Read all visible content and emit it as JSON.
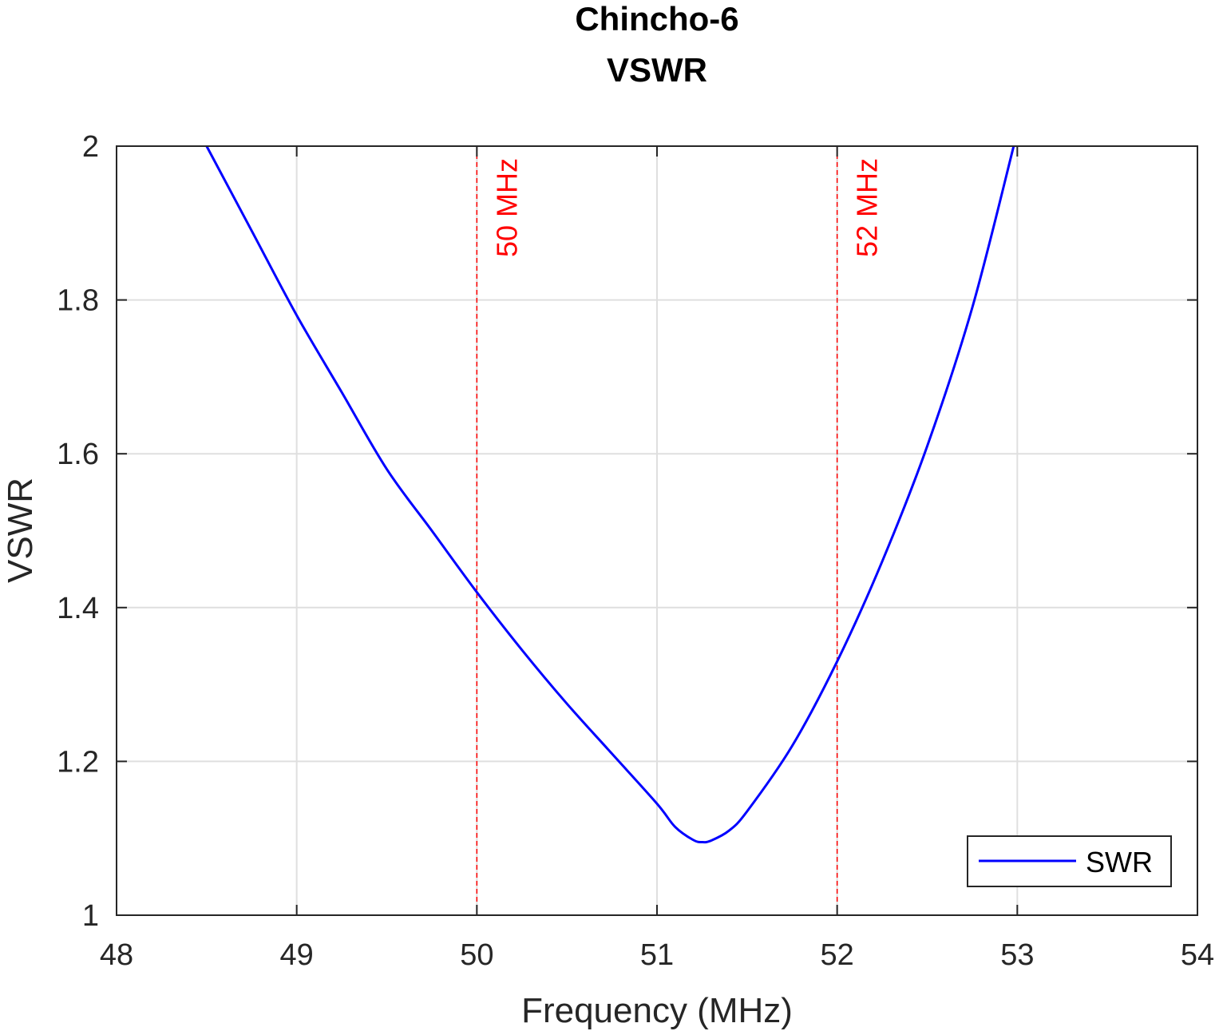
{
  "chart_data": {
    "type": "line",
    "title": [
      "Chincho-6",
      "VSWR"
    ],
    "xlabel": "Frequency (MHz)",
    "ylabel": "VSWR",
    "xlim": [
      48,
      54
    ],
    "ylim": [
      1,
      2
    ],
    "xticks": [
      "48",
      "49",
      "50",
      "51",
      "52",
      "53",
      "54"
    ],
    "yticks": [
      "1",
      "1.2",
      "1.4",
      "1.6",
      "1.8",
      "2"
    ],
    "grid": true,
    "legend_position": "bottom-right",
    "series": [
      {
        "name": "SWR",
        "color": "#0000ff",
        "x": [
          48.5,
          48.75,
          49.0,
          49.25,
          49.5,
          49.75,
          50.0,
          50.25,
          50.5,
          50.75,
          51.0,
          51.1,
          51.2,
          51.25,
          51.3,
          51.4,
          51.5,
          51.75,
          52.0,
          52.25,
          52.5,
          52.75,
          52.98
        ],
        "y": [
          2.0,
          1.89,
          1.78,
          1.68,
          1.58,
          1.5,
          1.42,
          1.345,
          1.275,
          1.21,
          1.145,
          1.115,
          1.098,
          1.095,
          1.097,
          1.11,
          1.135,
          1.22,
          1.33,
          1.46,
          1.61,
          1.79,
          2.0
        ]
      }
    ],
    "markers": [
      {
        "x": 50,
        "label": "50 MHz",
        "color": "#ff0000"
      },
      {
        "x": 52,
        "label": "52 MHz",
        "color": "#ff0000"
      }
    ]
  }
}
